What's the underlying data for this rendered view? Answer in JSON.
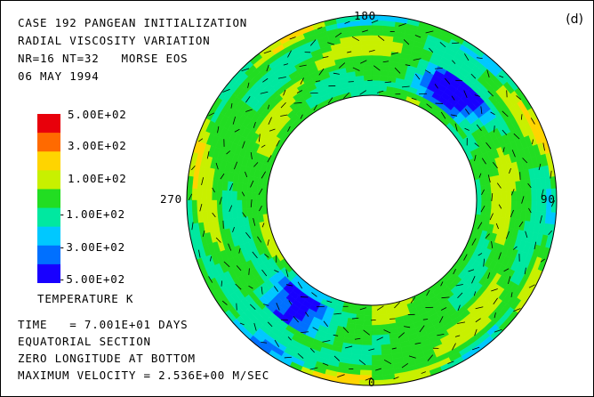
{
  "header": {
    "line1": "CASE 192 PANGEAN INITIALIZATION",
    "line2": "RADIAL VISCOSITY VARIATION",
    "line3": "NR=16 NT=32   MORSE EOS",
    "line4": "06 MAY 1994"
  },
  "panel_label": "(d)",
  "angle_labels": {
    "top": "180",
    "bottom": "0",
    "left": "270",
    "right": "90"
  },
  "colorbar": {
    "title": "TEMPERATURE K",
    "labels": [
      "5.00E+02",
      "3.00E+02",
      "1.00E+02",
      "-1.00E+02",
      "-3.00E+02",
      "-5.00E+02"
    ],
    "colors": [
      "#e8000b",
      "#ff6a00",
      "#ffd400",
      "#c8f000",
      "#22dd22",
      "#00e8a0",
      "#00c8ff",
      "#0070ff",
      "#1800ff"
    ]
  },
  "footer": {
    "time": "TIME   = 7.001E+01 DAYS",
    "section": "EQUATORIAL SECTION",
    "longitude": "ZERO LONGITUDE AT BOTTOM",
    "velocity": "MAXIMUM VELOCITY = 2.536E+00 M/SEC"
  }
}
